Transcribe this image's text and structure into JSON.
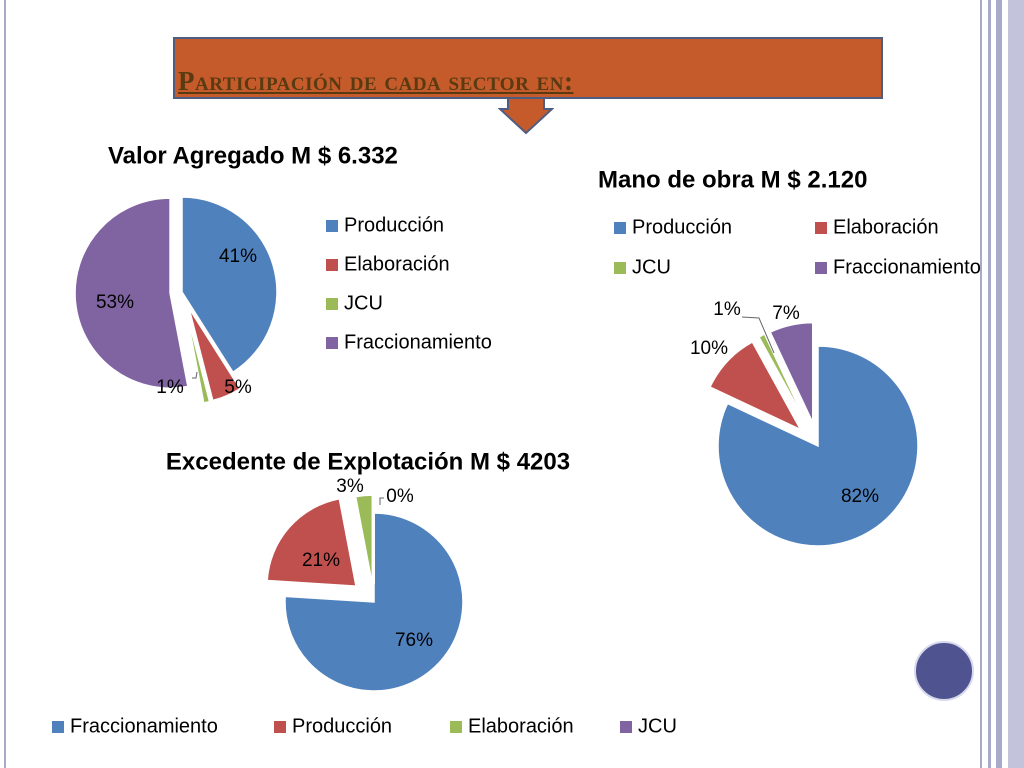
{
  "slide": {
    "title": "Participación de cada sector en:",
    "colors": {
      "banner": "#c55a2b",
      "banner_border": "#4e5d80",
      "frame": "#a9a9c9",
      "circle": "#4f5491"
    }
  },
  "chart_data": [
    {
      "type": "pie",
      "title": "Valor Agregado M $ 6.332",
      "categories": [
        "Producción",
        "Elaboración",
        "JCU",
        "Fraccionamiento"
      ],
      "values": [
        41,
        5,
        1,
        53
      ],
      "labels": [
        "41%",
        "5%",
        "1%",
        "53%"
      ],
      "colors": [
        "#4f81bd",
        "#c0504d",
        "#9bbb59",
        "#8064a2"
      ],
      "exploded": true,
      "legend_placement": "right"
    },
    {
      "type": "pie",
      "title": "Mano de obra M $ 2.120",
      "categories": [
        "Producción",
        "Elaboración",
        "JCU",
        "Fraccionamiento"
      ],
      "values": [
        82,
        10,
        1,
        7
      ],
      "labels": [
        "82%",
        "10%",
        "1%",
        "7%"
      ],
      "colors": [
        "#4f81bd",
        "#c0504d",
        "#9bbb59",
        "#8064a2"
      ],
      "exploded": true,
      "legend_placement": "top"
    },
    {
      "type": "pie",
      "title": "Excedente de Explotación M $ 4203",
      "categories": [
        "Fraccionamiento",
        "Producción",
        "Elaboración",
        "JCU"
      ],
      "values": [
        76,
        21,
        3,
        0
      ],
      "labels": [
        "76%",
        "21%",
        "3%",
        "0%"
      ],
      "colors": [
        "#4f81bd",
        "#c0504d",
        "#9bbb59",
        "#8064a2"
      ],
      "exploded": true,
      "legend_placement": "bottom"
    }
  ]
}
